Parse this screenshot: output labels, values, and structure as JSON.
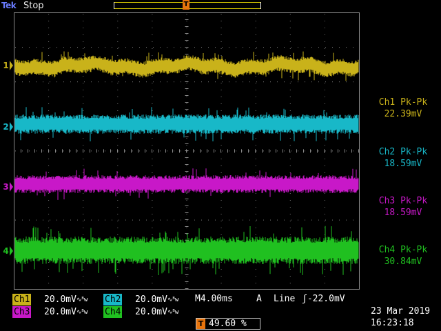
{
  "header": {
    "brand": "Tek",
    "acq_state": "Stop",
    "trigger_marker": "T"
  },
  "colors": {
    "ch1": "#c9b21a",
    "ch2": "#18b8c8",
    "ch3": "#c818c8",
    "ch4": "#20c020",
    "trigger": "#e8740c"
  },
  "channels": [
    {
      "id": "1",
      "readout_label": "Ch1 Pk-Pk",
      "readout_value": "22.39mV",
      "scale_label": "Ch1",
      "scale": "20.0mV",
      "coupling": "∿ᴮw"
    },
    {
      "id": "2",
      "readout_label": "Ch2 Pk-Pk",
      "readout_value": "18.59mV",
      "scale_label": "Ch2",
      "scale": "20.0mV",
      "coupling": "∿ᴮw"
    },
    {
      "id": "3",
      "readout_label": "Ch3 Pk-Pk",
      "readout_value": "18.59mV",
      "scale_label": "Ch3",
      "scale": "20.0mV",
      "coupling": "∿ᴮw"
    },
    {
      "id": "4",
      "readout_label": "Ch4 Pk-Pk",
      "readout_value": "30.84mV",
      "scale_label": "Ch4",
      "scale": "20.0mV",
      "coupling": "∿ᴮw"
    }
  ],
  "horizontal": {
    "timebase": "M4.00ms"
  },
  "trigger": {
    "source": "A",
    "coupling": "Line",
    "level": "ʃ-22.0mV",
    "position_marker": "T",
    "position": "49.60 %"
  },
  "datetime": {
    "date": "23 Mar 2019",
    "time": "16:23:18"
  }
}
